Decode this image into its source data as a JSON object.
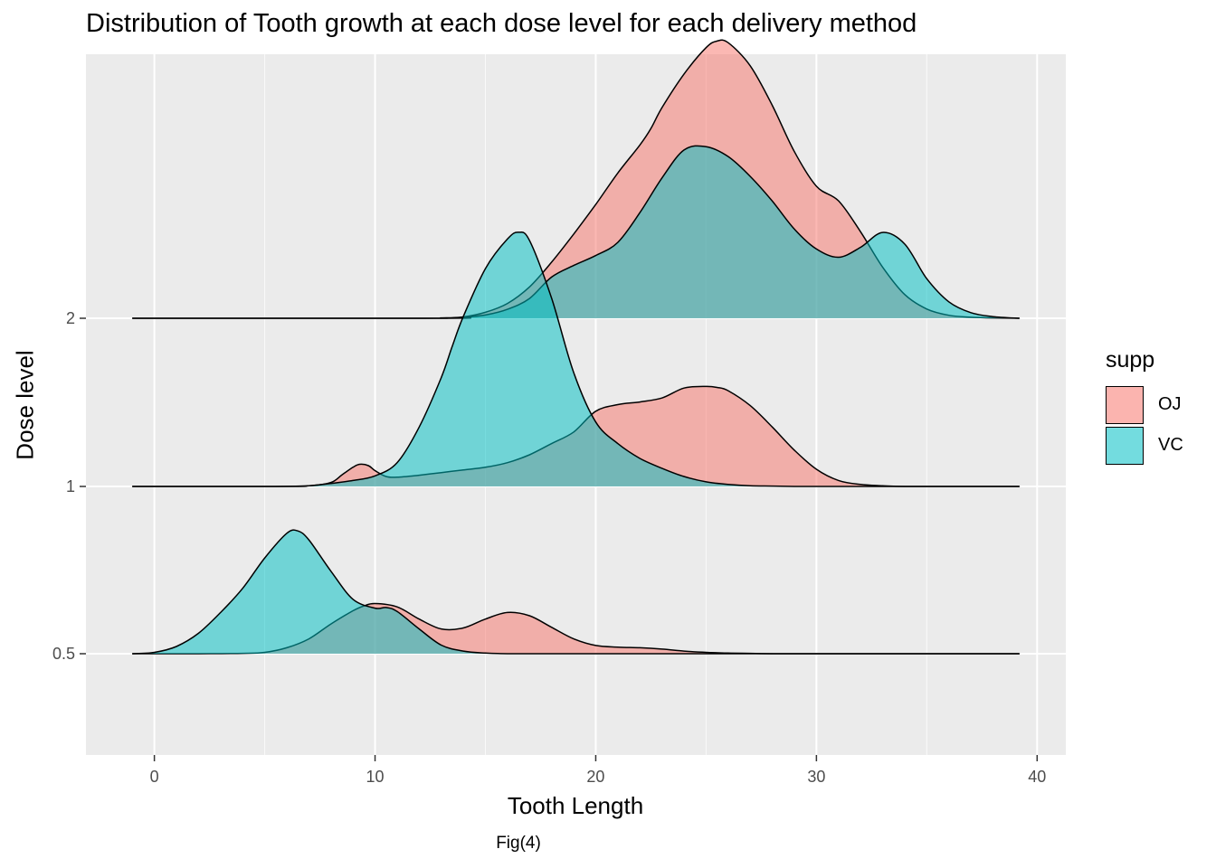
{
  "title": "Distribution of Tooth growth at each dose level for each delivery method",
  "caption": "Fig(4)",
  "chart_data": {
    "type": "ridgeline",
    "title": "Distribution of Tooth growth at each dose level for each delivery method",
    "xlabel": "Tooth Length",
    "ylabel": "Dose level",
    "xlim": [
      -3.1,
      41.3
    ],
    "x_ticks": [
      0,
      10,
      20,
      30,
      40
    ],
    "x_tick_labels": [
      "0",
      "10",
      "20",
      "30",
      "40"
    ],
    "y_categories": [
      "0.5",
      "1",
      "2"
    ],
    "y_tick_labels": [
      "0.5",
      "1",
      "2"
    ],
    "grid": true,
    "legend": {
      "title": "supp",
      "position": "right"
    },
    "colors": {
      "OJ": "#F8766D",
      "VC": "#00BFC4",
      "panel": "#EBEBEB",
      "grid": "#FFFFFF"
    },
    "series": [
      {
        "name": "OJ",
        "densities": [
          {
            "dose": "0.5",
            "x": [
              -1,
              0,
              2,
              4,
              5,
              6,
              7,
              8,
              9,
              9.5,
              10,
              11,
              12,
              13,
              14,
              15,
              16,
              17,
              18,
              19,
              20,
              21,
              22,
              23,
              24,
              25,
              26,
              27,
              28,
              30,
              32,
              34,
              36,
              38,
              39.2
            ],
            "h": [
              0,
              0,
              0,
              0.01,
              0.04,
              0.18,
              0.45,
              0.9,
              1.3,
              1.45,
              1.52,
              1.42,
              1.05,
              0.75,
              0.78,
              1.05,
              1.25,
              1.15,
              0.8,
              0.45,
              0.25,
              0.2,
              0.18,
              0.14,
              0.08,
              0.04,
              0.02,
              0.01,
              0,
              0,
              0,
              0,
              0,
              0,
              0
            ]
          },
          {
            "dose": "1",
            "x": [
              -1,
              5,
              7,
              8,
              8.5,
              9,
              9.3,
              9.7,
              10,
              10.5,
              11,
              12,
              13,
              14,
              15,
              16,
              17,
              18,
              19,
              20,
              21,
              22,
              23,
              24,
              25,
              25.5,
              26,
              27,
              28,
              29,
              30,
              31,
              32,
              33,
              34,
              36,
              39.2
            ],
            "h": [
              0,
              0,
              0.02,
              0.12,
              0.35,
              0.58,
              0.67,
              0.63,
              0.48,
              0.3,
              0.28,
              0.34,
              0.42,
              0.5,
              0.58,
              0.72,
              0.96,
              1.3,
              1.65,
              2.28,
              2.48,
              2.56,
              2.68,
              2.98,
              3.03,
              3.0,
              2.9,
              2.45,
              1.8,
              1.1,
              0.52,
              0.18,
              0.06,
              0.02,
              0,
              0,
              0
            ]
          },
          {
            "dose": "2",
            "x": [
              -1,
              12,
              13,
              14,
              15,
              16,
              17,
              18,
              19,
              20,
              21,
              22,
              22.5,
              23,
              24,
              25,
              25.5,
              26,
              27,
              28,
              29,
              30,
              31,
              32,
              33,
              34,
              35,
              36,
              37,
              38,
              39.2
            ],
            "h": [
              0,
              0,
              0.01,
              0.04,
              0.18,
              0.45,
              0.95,
              1.7,
              2.55,
              3.45,
              4.4,
              5.25,
              5.75,
              6.38,
              7.4,
              8.2,
              8.4,
              8.35,
              7.65,
              6.45,
              5.05,
              4.0,
              3.56,
              2.62,
              1.55,
              0.72,
              0.28,
              0.09,
              0.03,
              0.01,
              0
            ]
          }
        ]
      },
      {
        "name": "VC",
        "densities": [
          {
            "dose": "0.5",
            "x": [
              -1,
              0,
              1,
              2,
              3,
              4,
              5,
              6,
              6.5,
              7,
              8,
              9,
              10,
              10.5,
              11,
              12,
              13,
              14,
              15,
              16,
              17,
              18,
              19,
              20,
              39.2
            ],
            "h": [
              0,
              0.04,
              0.22,
              0.62,
              1.25,
              1.98,
              2.9,
              3.65,
              3.72,
              3.45,
              2.5,
              1.65,
              1.38,
              1.4,
              1.28,
              0.75,
              0.26,
              0.08,
              0.02,
              0,
              0,
              0,
              0,
              0,
              0
            ]
          },
          {
            "dose": "1",
            "x": [
              -1,
              6,
              7,
              8,
              9,
              10,
              11,
              12,
              13,
              13.5,
              14,
              15,
              16,
              16.5,
              17,
              18,
              19,
              20,
              21,
              22,
              23,
              24,
              25,
              26,
              27,
              28,
              29,
              30,
              39.2
            ],
            "h": [
              0,
              0,
              0.02,
              0.09,
              0.18,
              0.32,
              0.72,
              1.8,
              3.3,
              4.25,
              5.15,
              6.6,
              7.5,
              7.7,
              7.45,
              5.7,
              3.45,
              1.95,
              1.3,
              0.85,
              0.55,
              0.3,
              0.14,
              0.06,
              0.02,
              0.01,
              0,
              0,
              0
            ]
          },
          {
            "dose": "2",
            "x": [
              -1,
              13,
              14,
              15,
              16,
              17,
              18,
              19,
              20,
              21,
              22,
              23,
              24,
              25,
              26,
              27,
              28,
              29,
              30,
              31,
              32,
              33,
              34,
              35,
              36,
              37,
              38,
              39.2
            ],
            "h": [
              0,
              0,
              0.03,
              0.1,
              0.27,
              0.6,
              1.25,
              1.6,
              1.9,
              2.3,
              3.2,
              4.25,
              5.1,
              5.2,
              4.9,
              4.3,
              3.55,
              2.7,
              2.1,
              1.85,
              2.15,
              2.6,
              2.25,
              1.2,
              0.5,
              0.17,
              0.05,
              0
            ]
          }
        ]
      }
    ]
  }
}
